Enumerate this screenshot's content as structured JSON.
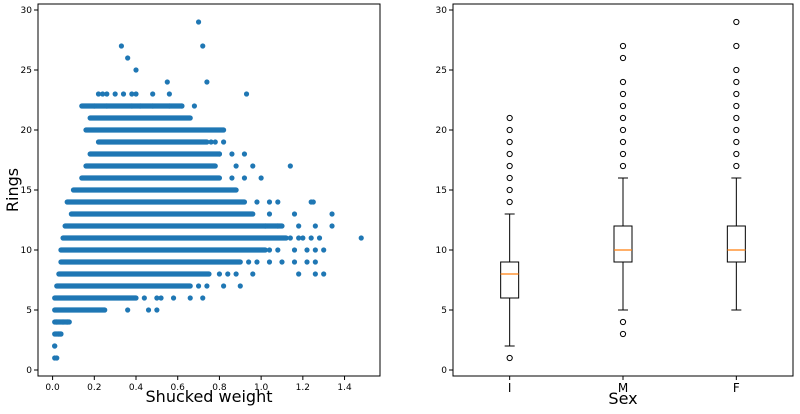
{
  "chart_data": [
    {
      "type": "scatter",
      "xlabel": "Shucked weight",
      "ylabel": "Rings",
      "xlim": [
        -0.07,
        1.57
      ],
      "ylim": [
        -0.5,
        30.5
      ],
      "xticks": [
        0.0,
        0.2,
        0.4,
        0.6,
        0.8,
        1.0,
        1.2,
        1.4
      ],
      "xtick_labels": [
        "0.0",
        "0.2",
        "0.4",
        "0.6",
        "0.8",
        "1.0",
        "1.2",
        "1.4"
      ],
      "yticks": [
        0,
        5,
        10,
        15,
        20,
        25,
        30
      ],
      "ytick_labels": [
        "0",
        "5",
        "10",
        "15",
        "20",
        "25",
        "30"
      ],
      "marker_color": "#1f77b4",
      "bands": [
        {
          "y": 1,
          "x0": 0.01,
          "x1": 0.01
        },
        {
          "y": 2,
          "x0": 0.01,
          "x1": 0.01
        },
        {
          "y": 3,
          "x0": 0.01,
          "x1": 0.04
        },
        {
          "y": 4,
          "x0": 0.01,
          "x1": 0.08
        },
        {
          "y": 5,
          "x0": 0.01,
          "x1": 0.25
        },
        {
          "y": 6,
          "x0": 0.01,
          "x1": 0.4
        },
        {
          "y": 7,
          "x0": 0.02,
          "x1": 0.66
        },
        {
          "y": 8,
          "x0": 0.03,
          "x1": 0.75
        },
        {
          "y": 9,
          "x0": 0.04,
          "x1": 0.9
        },
        {
          "y": 10,
          "x0": 0.04,
          "x1": 1.02
        },
        {
          "y": 11,
          "x0": 0.05,
          "x1": 1.12
        },
        {
          "y": 12,
          "x0": 0.06,
          "x1": 1.1
        },
        {
          "y": 13,
          "x0": 0.09,
          "x1": 0.96
        },
        {
          "y": 14,
          "x0": 0.07,
          "x1": 0.92
        },
        {
          "y": 15,
          "x0": 0.1,
          "x1": 0.88
        },
        {
          "y": 16,
          "x0": 0.14,
          "x1": 0.8
        },
        {
          "y": 17,
          "x0": 0.16,
          "x1": 0.78
        },
        {
          "y": 18,
          "x0": 0.18,
          "x1": 0.8
        },
        {
          "y": 19,
          "x0": 0.22,
          "x1": 0.74
        },
        {
          "y": 20,
          "x0": 0.16,
          "x1": 0.82
        },
        {
          "y": 21,
          "x0": 0.18,
          "x1": 0.66
        },
        {
          "y": 22,
          "x0": 0.14,
          "x1": 0.62
        }
      ],
      "points": [
        [
          0.02,
          1
        ],
        [
          0.01,
          2
        ],
        [
          0.03,
          3
        ],
        [
          0.04,
          3
        ],
        [
          0.02,
          4
        ],
        [
          0.05,
          4
        ],
        [
          0.07,
          4
        ],
        [
          0.2,
          22
        ],
        [
          0.26,
          22
        ],
        [
          0.38,
          22
        ],
        [
          0.42,
          22
        ],
        [
          0.48,
          22
        ],
        [
          0.56,
          22
        ],
        [
          0.62,
          22
        ],
        [
          0.68,
          22
        ],
        [
          0.22,
          23
        ],
        [
          0.24,
          23
        ],
        [
          0.26,
          23
        ],
        [
          0.3,
          23
        ],
        [
          0.34,
          23
        ],
        [
          0.38,
          23
        ],
        [
          0.4,
          23
        ],
        [
          0.48,
          23
        ],
        [
          0.56,
          23
        ],
        [
          0.93,
          23
        ],
        [
          0.55,
          24
        ],
        [
          0.74,
          24
        ],
        [
          0.4,
          25
        ],
        [
          0.36,
          26
        ],
        [
          0.33,
          27
        ],
        [
          0.72,
          27
        ],
        [
          0.7,
          29
        ],
        [
          0.86,
          16
        ],
        [
          0.92,
          16
        ],
        [
          1.0,
          16
        ],
        [
          0.88,
          17
        ],
        [
          0.96,
          17
        ],
        [
          1.14,
          17
        ],
        [
          0.8,
          18
        ],
        [
          0.86,
          18
        ],
        [
          0.92,
          18
        ],
        [
          0.76,
          19
        ],
        [
          0.78,
          19
        ],
        [
          0.82,
          19
        ],
        [
          0.98,
          14
        ],
        [
          1.04,
          14
        ],
        [
          1.08,
          14
        ],
        [
          1.24,
          14
        ],
        [
          1.25,
          14
        ],
        [
          1.04,
          13
        ],
        [
          1.16,
          13
        ],
        [
          1.34,
          13
        ],
        [
          1.02,
          12
        ],
        [
          1.08,
          12
        ],
        [
          1.18,
          12
        ],
        [
          1.26,
          12
        ],
        [
          1.34,
          12
        ],
        [
          1.14,
          11
        ],
        [
          1.18,
          11
        ],
        [
          1.2,
          11
        ],
        [
          1.24,
          11
        ],
        [
          1.28,
          11
        ],
        [
          1.48,
          11
        ],
        [
          1.04,
          10
        ],
        [
          1.08,
          10
        ],
        [
          1.16,
          10
        ],
        [
          1.22,
          10
        ],
        [
          1.26,
          10
        ],
        [
          1.3,
          10
        ],
        [
          0.94,
          9
        ],
        [
          0.98,
          9
        ],
        [
          1.04,
          9
        ],
        [
          1.1,
          9
        ],
        [
          1.16,
          9
        ],
        [
          1.22,
          9
        ],
        [
          1.26,
          9
        ],
        [
          0.8,
          8
        ],
        [
          0.84,
          8
        ],
        [
          0.88,
          8
        ],
        [
          0.96,
          8
        ],
        [
          1.18,
          8
        ],
        [
          1.26,
          8
        ],
        [
          1.3,
          8
        ],
        [
          0.7,
          7
        ],
        [
          0.74,
          7
        ],
        [
          0.82,
          7
        ],
        [
          0.9,
          7
        ],
        [
          0.44,
          6
        ],
        [
          0.5,
          6
        ],
        [
          0.52,
          6
        ],
        [
          0.58,
          6
        ],
        [
          0.66,
          6
        ],
        [
          0.72,
          6
        ],
        [
          0.36,
          5
        ],
        [
          0.46,
          5
        ],
        [
          0.5,
          5
        ]
      ]
    },
    {
      "type": "box",
      "xlabel": "Sex",
      "ylabel": "",
      "categories": [
        "I",
        "M",
        "F"
      ],
      "ylim": [
        -0.5,
        30.5
      ],
      "yticks": [
        0,
        5,
        10,
        15,
        20,
        25,
        30
      ],
      "ytick_labels": [
        "0",
        "5",
        "10",
        "15",
        "20",
        "25",
        "30"
      ],
      "median_color": "#ff7f0e",
      "boxes": [
        {
          "whislo": 2,
          "q1": 6,
          "med": 8,
          "q3": 9,
          "whishi": 13,
          "fliers": [
            1,
            14,
            15,
            16,
            17,
            18,
            19,
            20,
            21
          ]
        },
        {
          "whislo": 5,
          "q1": 9,
          "med": 10,
          "q3": 12,
          "whishi": 16,
          "fliers": [
            3,
            4,
            17,
            18,
            19,
            20,
            21,
            22,
            23,
            24,
            26,
            27
          ]
        },
        {
          "whislo": 5,
          "q1": 9,
          "med": 10,
          "q3": 12,
          "whishi": 16,
          "fliers": [
            17,
            18,
            19,
            20,
            21,
            22,
            23,
            24,
            25,
            27,
            29
          ]
        }
      ]
    }
  ]
}
